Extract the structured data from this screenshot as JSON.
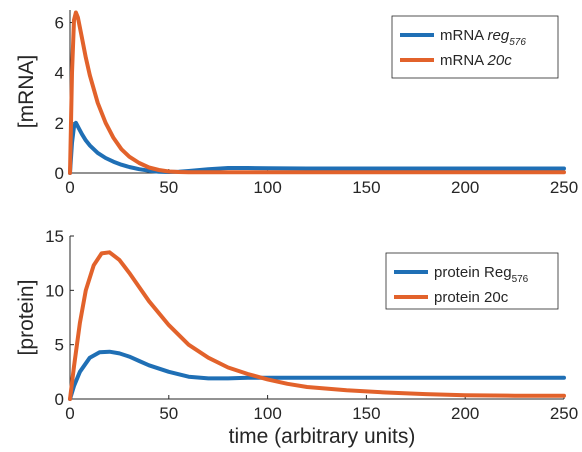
{
  "chart_data": [
    {
      "type": "line",
      "ylabel": "[mRNA]",
      "xlabel": "",
      "xlim": [
        0,
        250
      ],
      "ylim": [
        0,
        6.5
      ],
      "x_ticks": [
        "0",
        "50",
        "100",
        "150",
        "200",
        "250"
      ],
      "y_ticks": [
        "0",
        "2",
        "4",
        "6"
      ],
      "legend_position": "top-right",
      "series": [
        {
          "name": "mRNA reg576",
          "legend_main": "mRNA ",
          "legend_italic": "reg",
          "legend_sub": "576",
          "color": "#1f6fb5",
          "x": [
            0,
            1,
            2,
            3,
            4,
            6,
            8,
            10,
            14,
            18,
            22,
            26,
            30,
            35,
            40,
            45,
            50,
            55,
            60,
            70,
            80,
            90,
            100,
            120,
            150,
            200,
            250
          ],
          "y": [
            0,
            1.2,
            1.85,
            2.0,
            1.85,
            1.55,
            1.3,
            1.1,
            0.8,
            0.6,
            0.45,
            0.33,
            0.24,
            0.15,
            0.09,
            0.05,
            0.04,
            0.05,
            0.08,
            0.15,
            0.2,
            0.2,
            0.19,
            0.18,
            0.18,
            0.18,
            0.18
          ]
        },
        {
          "name": "mRNA 20c",
          "legend_main": "mRNA ",
          "legend_italic": "20c",
          "legend_sub": "",
          "color": "#e2622b",
          "x": [
            0,
            1,
            2,
            3,
            4,
            6,
            8,
            10,
            14,
            18,
            22,
            26,
            30,
            35,
            40,
            45,
            50,
            55,
            60,
            70,
            80,
            90,
            100,
            120,
            150,
            200,
            250
          ],
          "y": [
            0,
            4.0,
            6.1,
            6.4,
            6.2,
            5.4,
            4.6,
            3.9,
            2.8,
            2.0,
            1.4,
            0.95,
            0.65,
            0.4,
            0.22,
            0.12,
            0.06,
            0.04,
            0.03,
            0.03,
            0.03,
            0.03,
            0.03,
            0.03,
            0.03,
            0.03,
            0.03
          ]
        }
      ]
    },
    {
      "type": "line",
      "ylabel": "[protein]",
      "xlabel": "time (arbitrary units)",
      "xlim": [
        0,
        250
      ],
      "ylim": [
        0,
        15
      ],
      "x_ticks": [
        "0",
        "50",
        "100",
        "150",
        "200",
        "250"
      ],
      "y_ticks": [
        "0",
        "5",
        "10",
        "15"
      ],
      "legend_position": "top-right",
      "series": [
        {
          "name": "protein Reg576",
          "legend_main": "protein Reg",
          "legend_italic": "",
          "legend_sub": "576",
          "color": "#1f6fb5",
          "x": [
            0,
            2,
            5,
            10,
            15,
            20,
            25,
            30,
            35,
            40,
            50,
            60,
            70,
            80,
            90,
            100,
            120,
            150,
            200,
            250
          ],
          "y": [
            0,
            1.2,
            2.5,
            3.8,
            4.3,
            4.35,
            4.2,
            3.9,
            3.5,
            3.1,
            2.5,
            2.05,
            1.9,
            1.9,
            1.95,
            1.95,
            1.95,
            1.95,
            1.95,
            1.95
          ]
        },
        {
          "name": "protein 20c",
          "legend_main": "protein 20c",
          "legend_italic": "",
          "legend_sub": "",
          "color": "#e2622b",
          "x": [
            0,
            2,
            5,
            8,
            12,
            16,
            20,
            25,
            30,
            35,
            40,
            50,
            60,
            70,
            80,
            90,
            100,
            110,
            120,
            140,
            160,
            180,
            200,
            225,
            250
          ],
          "y": [
            0,
            3.0,
            7.0,
            10.0,
            12.3,
            13.4,
            13.5,
            12.8,
            11.6,
            10.3,
            9.0,
            6.8,
            5.0,
            3.8,
            2.9,
            2.3,
            1.8,
            1.4,
            1.1,
            0.8,
            0.6,
            0.45,
            0.35,
            0.3,
            0.3
          ]
        }
      ]
    }
  ]
}
